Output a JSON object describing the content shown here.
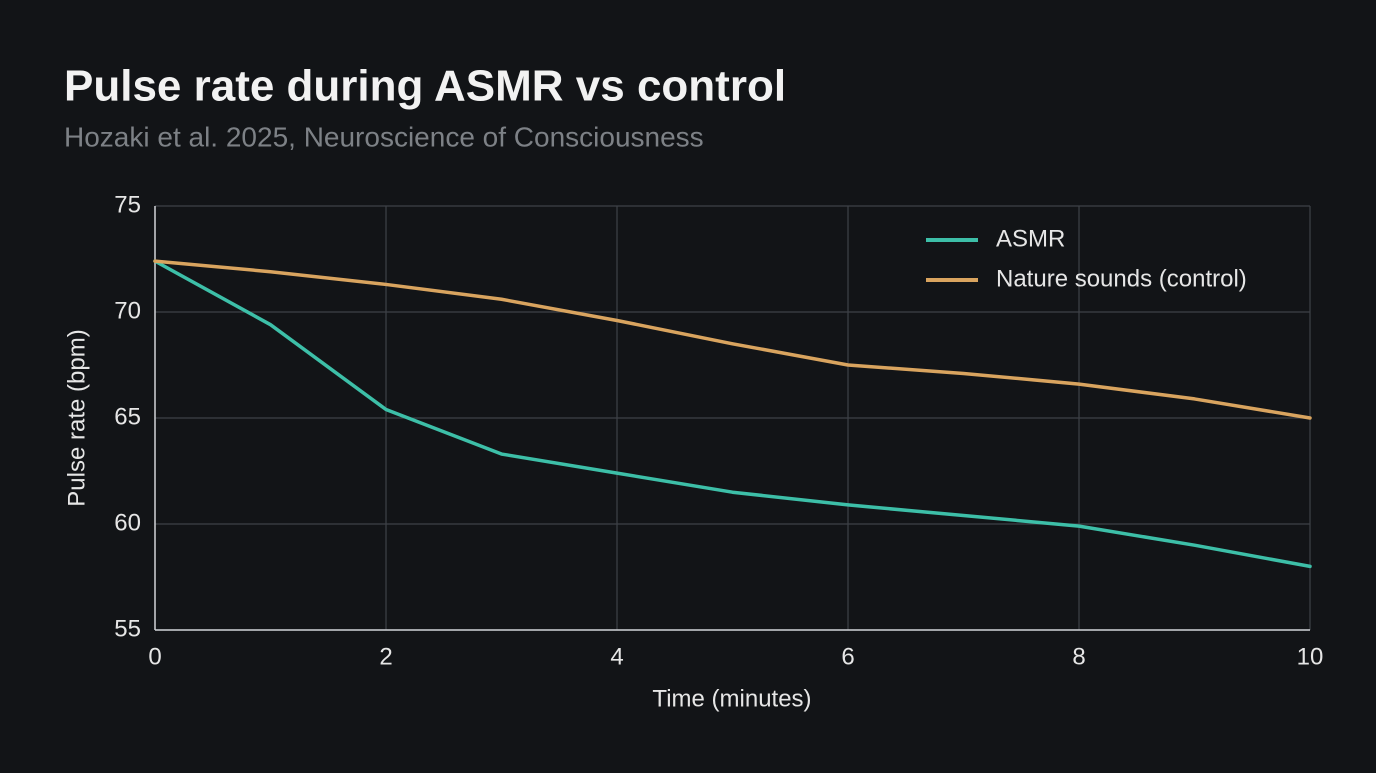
{
  "chart_data": {
    "type": "line",
    "title": "Pulse rate during ASMR vs control",
    "subtitle": "Hozaki et al. 2025, Neuroscience of Consciousness",
    "x_label": "Time (minutes)",
    "y_label": "Pulse rate (bpm)",
    "x": [
      0,
      1,
      2,
      3,
      4,
      5,
      6,
      7,
      8,
      9,
      10
    ],
    "series": [
      {
        "name": "ASMR",
        "color": "#3dbfa8",
        "values": [
          72.4,
          69.4,
          65.4,
          63.3,
          62.4,
          61.5,
          60.9,
          60.4,
          59.9,
          59.0,
          58.0
        ]
      },
      {
        "name": "Nature sounds (control)",
        "color": "#d9a45f",
        "values": [
          72.4,
          71.9,
          71.3,
          70.6,
          69.6,
          68.5,
          67.5,
          67.1,
          66.6,
          65.9,
          65.0
        ]
      }
    ],
    "xlim": [
      0,
      10
    ],
    "xticks": [
      0,
      2,
      4,
      6,
      8,
      10
    ],
    "ylim": [
      55,
      75
    ],
    "yticks": [
      55,
      60,
      65,
      70,
      75
    ],
    "grid": true,
    "legend": "upper-right"
  }
}
